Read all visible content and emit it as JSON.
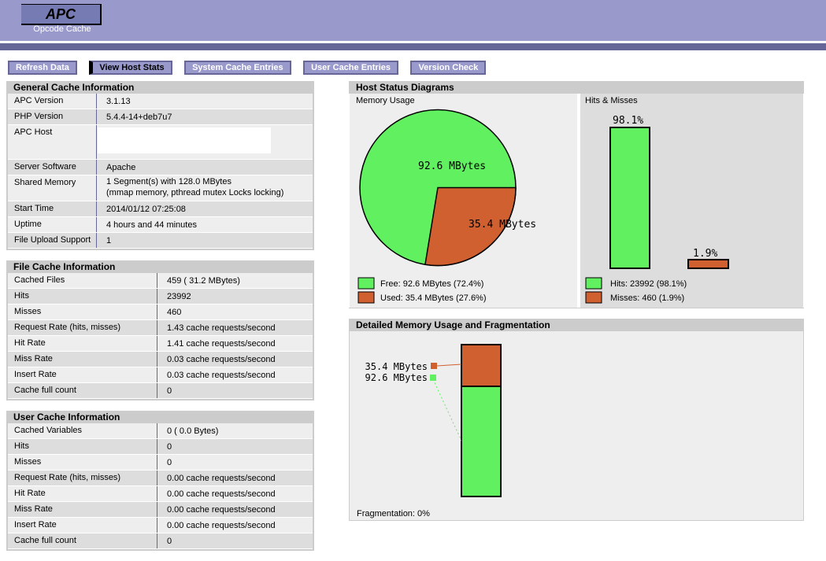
{
  "header": {
    "logo": "APC",
    "subtitle": "Opcode Cache"
  },
  "menu": {
    "items": [
      {
        "label": "Refresh Data",
        "active": false
      },
      {
        "label": "View Host Stats",
        "active": true
      },
      {
        "label": "System Cache Entries",
        "active": false
      },
      {
        "label": "User Cache Entries",
        "active": false
      },
      {
        "label": "Version Check",
        "active": false
      }
    ]
  },
  "panels": {
    "general": {
      "title": "General Cache Information",
      "rows": [
        {
          "label": "APC Version",
          "value": "3.1.13"
        },
        {
          "label": "PHP Version",
          "value": "5.4.4-14+deb7u7"
        },
        {
          "label": "APC Host",
          "value": ""
        },
        {
          "label": "Server Software",
          "value": "Apache"
        },
        {
          "label": "Shared Memory",
          "value": "1 Segment(s) with 128.0 MBytes",
          "value2": "(mmap memory, pthread mutex Locks locking)"
        },
        {
          "label": "Start Time",
          "value": "2014/01/12 07:25:08"
        },
        {
          "label": "Uptime",
          "value": "4 hours and 44 minutes"
        },
        {
          "label": "File Upload Support",
          "value": "1"
        }
      ]
    },
    "file": {
      "title": "File Cache Information",
      "rows": [
        {
          "label": "Cached Files",
          "value": "459 ( 31.2 MBytes)"
        },
        {
          "label": "Hits",
          "value": "23992"
        },
        {
          "label": "Misses",
          "value": "460"
        },
        {
          "label": "Request Rate (hits, misses)",
          "value": "1.43 cache requests/second"
        },
        {
          "label": "Hit Rate",
          "value": "1.41 cache requests/second"
        },
        {
          "label": "Miss Rate",
          "value": "0.03 cache requests/second"
        },
        {
          "label": "Insert Rate",
          "value": "0.03 cache requests/second"
        },
        {
          "label": "Cache full count",
          "value": "0"
        }
      ]
    },
    "user": {
      "title": "User Cache Information",
      "rows": [
        {
          "label": "Cached Variables",
          "value": "0 ( 0.0 Bytes)"
        },
        {
          "label": "Hits",
          "value": "0"
        },
        {
          "label": "Misses",
          "value": "0"
        },
        {
          "label": "Request Rate (hits, misses)",
          "value": "0.00 cache requests/second"
        },
        {
          "label": "Hit Rate",
          "value": "0.00 cache requests/second"
        },
        {
          "label": "Miss Rate",
          "value": "0.00 cache requests/second"
        },
        {
          "label": "Insert Rate",
          "value": "0.00 cache requests/second"
        },
        {
          "label": "Cache full count",
          "value": "0"
        }
      ]
    },
    "host": {
      "title": "Host Status Diagrams"
    },
    "detailed": {
      "title": "Detailed Memory Usage and Fragmentation"
    }
  },
  "colors": {
    "band": "#9999CC",
    "band_dark": "#666699",
    "logo_bg": "#777BB4",
    "panel_header": "#CCCCCC",
    "row_light": "#EEEEEE",
    "row_dark": "#DDDDDD",
    "green": "#60F060",
    "orange": "#D06030"
  },
  "chart_data": [
    {
      "type": "pie",
      "title": "Memory Usage",
      "slices": [
        {
          "label": "Free",
          "value_mb": 92.6,
          "pct": 72.4,
          "color": "#60F060",
          "slice_label": "92.6 MBytes",
          "legend": "Free: 92.6 MBytes (72.4%)"
        },
        {
          "label": "Used",
          "value_mb": 35.4,
          "pct": 27.6,
          "color": "#D06030",
          "slice_label": "35.4 MBytes",
          "legend": "Used: 35.4 MBytes (27.6%)"
        }
      ],
      "legend_position": "bottom-left"
    },
    {
      "type": "bar",
      "title": "Hits & Misses",
      "categories": [
        "Hits",
        "Misses"
      ],
      "values_pct": [
        98.1,
        1.9
      ],
      "counts": [
        23992,
        460
      ],
      "bar_labels": [
        "98.1%",
        "1.9%"
      ],
      "colors": [
        "#60F060",
        "#D06030"
      ],
      "legend": [
        "Hits: 23992 (98.1%)",
        "Misses: 460 (1.9%)"
      ],
      "ylim": [
        0,
        100
      ]
    },
    {
      "type": "bar",
      "subtype": "stacked-single-column",
      "title": "Detailed Memory Usage and Fragmentation",
      "segments": [
        {
          "label": "Used",
          "value_mb": 35.4,
          "color": "#D06030",
          "text": "35.4 MBytes"
        },
        {
          "label": "Free",
          "value_mb": 92.6,
          "color": "#60F060",
          "text": "92.6 MBytes"
        }
      ],
      "note": "Fragmentation: 0%"
    }
  ]
}
